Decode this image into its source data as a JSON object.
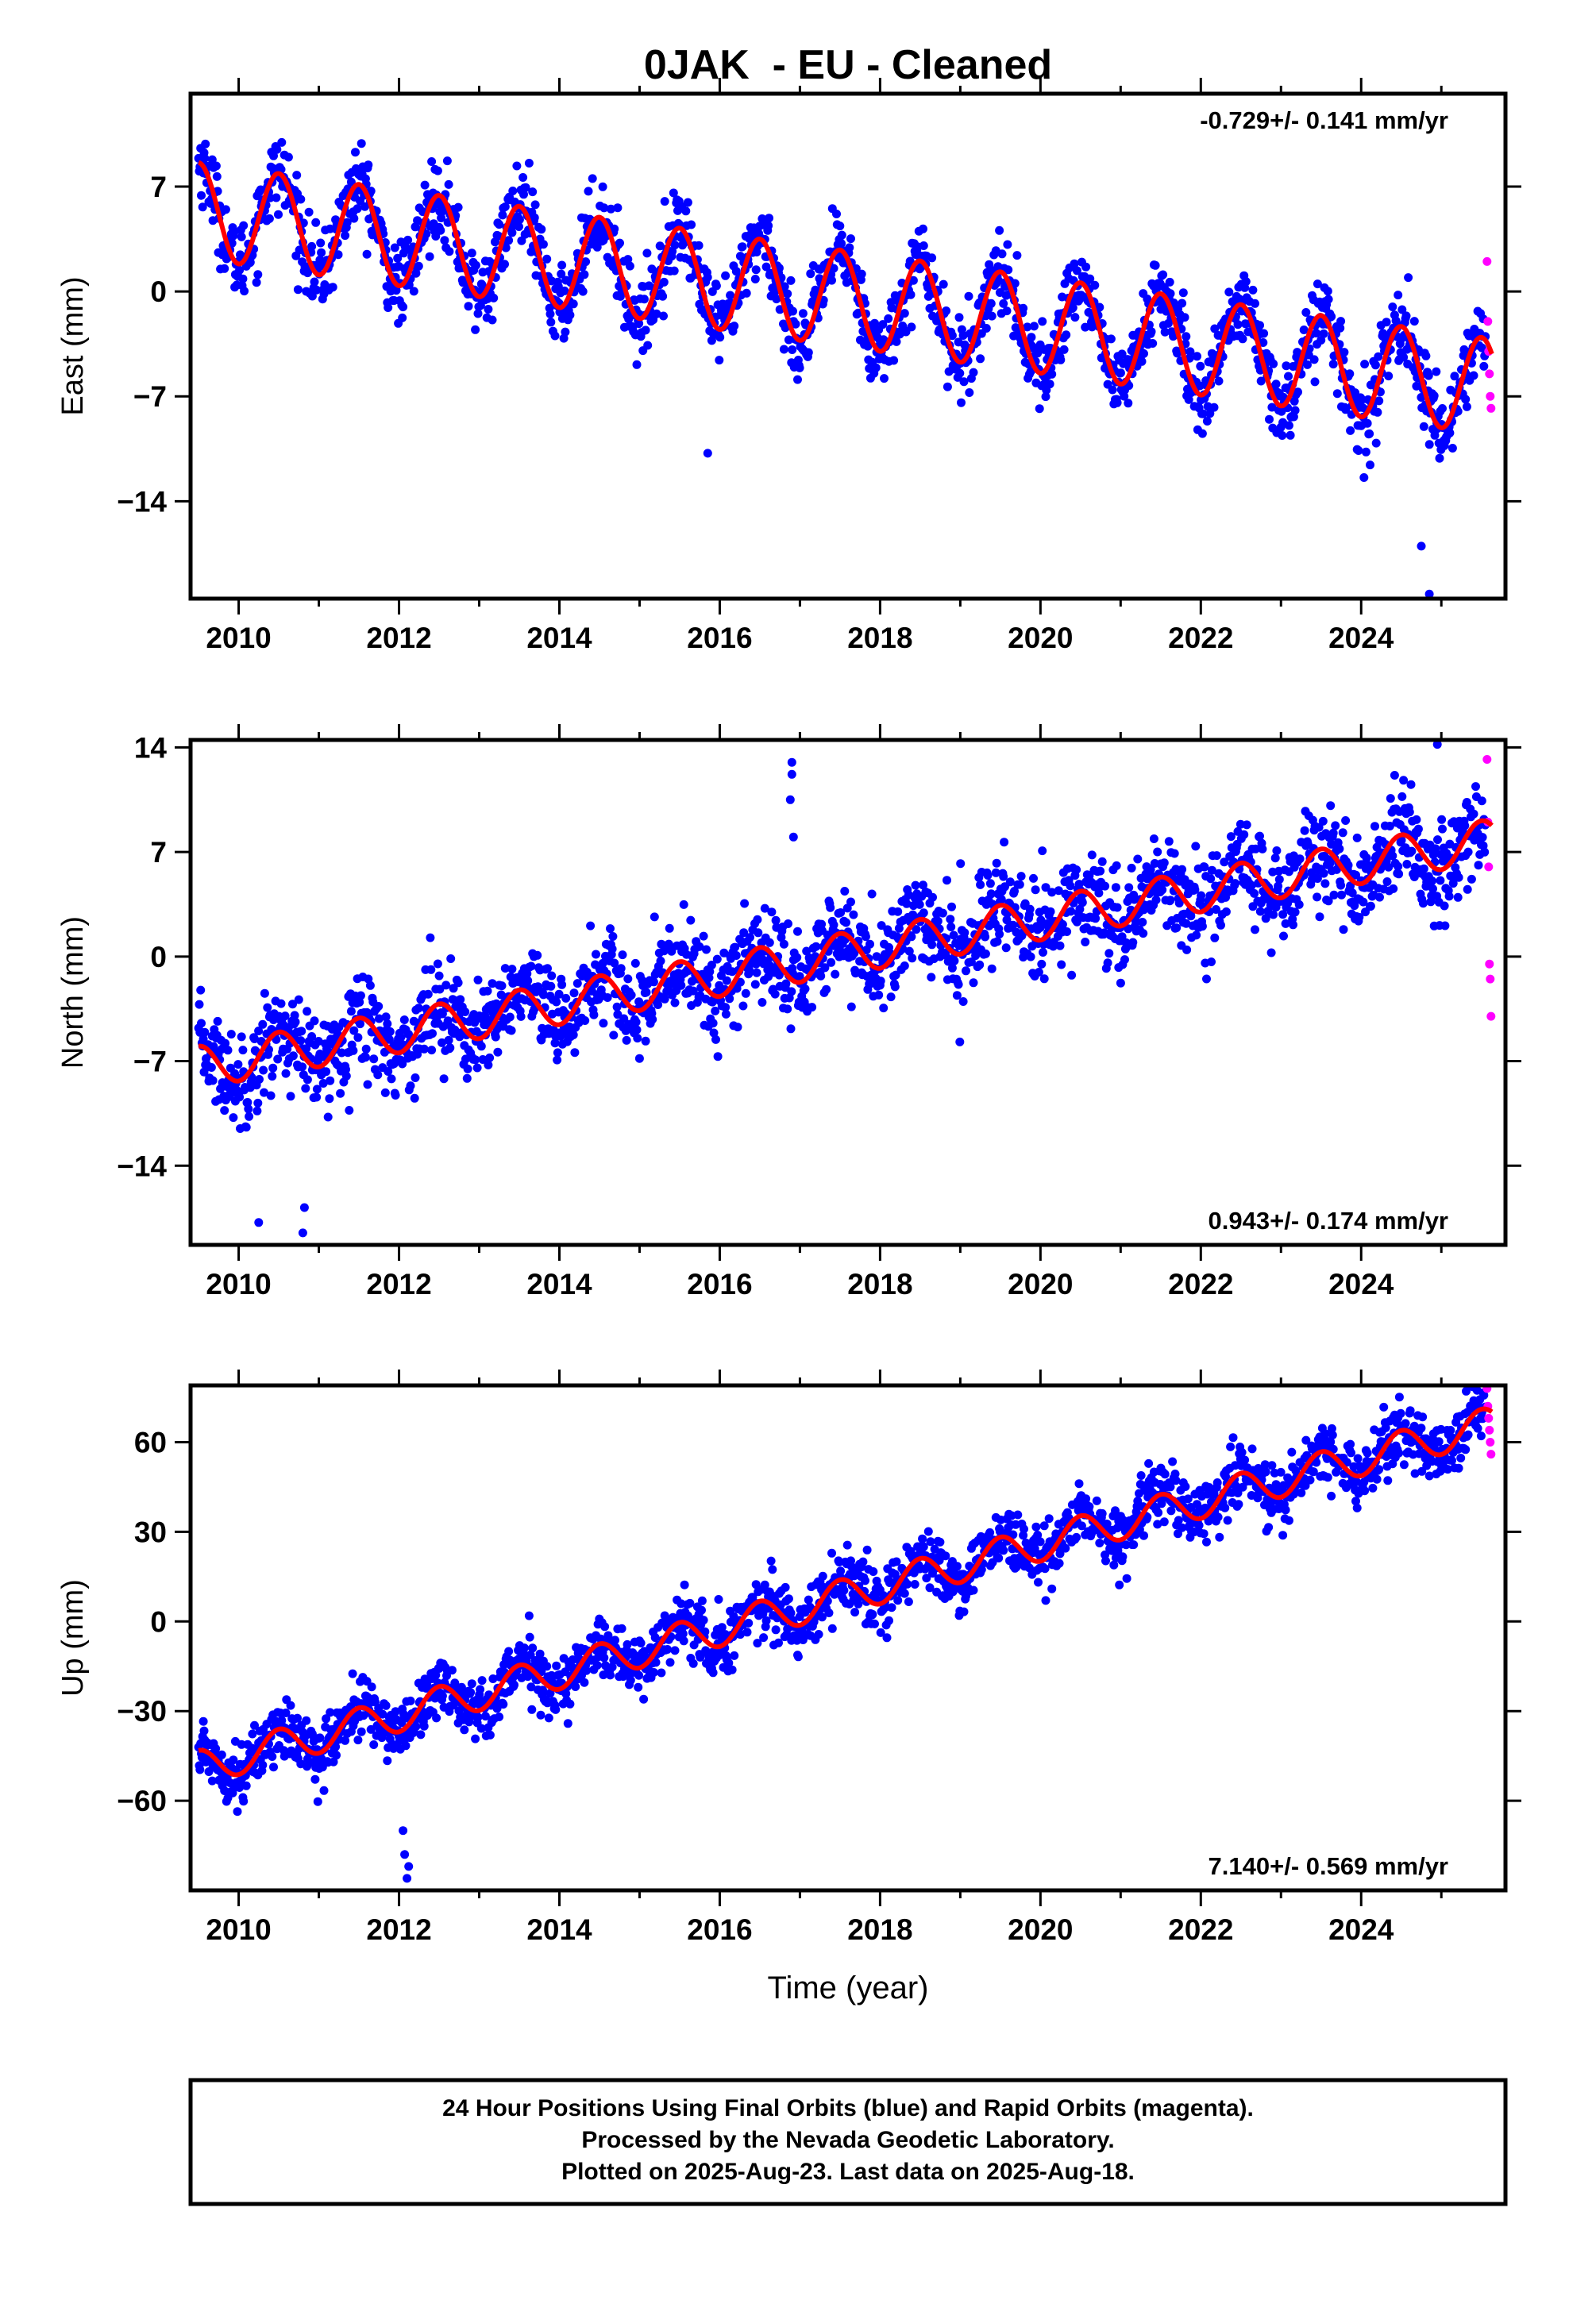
{
  "title": "0JAK  - EU - Cleaned",
  "x_axis_label": "Time (year)",
  "footer": [
    "24 Hour Positions Using Final Orbits (blue) and Rapid Orbits (magenta).",
    "Processed by the Nevada Geodetic Laboratory.",
    "Plotted on 2025-Aug-23. Last data on 2025-Aug-18."
  ],
  "colors": {
    "final": "#0000ff",
    "rapid": "#ff00ff",
    "model": "#ff0000",
    "frame": "#000000"
  },
  "chart_data": [
    {
      "type": "scatter",
      "component": "East",
      "ylabel": "East (mm)",
      "rate_label": "-0.729+/- 0.141 mm/yr",
      "rate_position": "top-right",
      "x_range": [
        2009.4,
        2025.8
      ],
      "ylim": [
        -20.5,
        13.2
      ],
      "y_ticks": [
        7,
        0,
        -7,
        -14
      ],
      "x_ticks": [
        2010,
        2012,
        2014,
        2016,
        2018,
        2020,
        2022,
        2024
      ],
      "model": {
        "start": 2009.5,
        "end": 2025.63,
        "offset_at_2009_5": 5.4,
        "rate_mm_per_yr": -0.729,
        "annual_amplitude": 3.2,
        "scatter_sd": 1.3
      },
      "series": [
        {
          "name": "Final Orbits (blue)",
          "color": "#0000ff",
          "x_range": [
            2009.5,
            2025.55
          ]
        },
        {
          "name": "Rapid Orbits (magenta)",
          "color": "#ff00ff",
          "x": [
            2025.57,
            2025.58,
            2025.59,
            2025.6,
            2025.61,
            2025.62
          ],
          "y": [
            2.0,
            -2.0,
            -4.0,
            -5.5,
            -7.0,
            -7.8
          ]
        }
      ],
      "outliers": [
        {
          "x": 2015.85,
          "y": -10.8
        },
        {
          "x": 2024.75,
          "y": -17.0
        },
        {
          "x": 2024.85,
          "y": -20.2
        }
      ]
    },
    {
      "type": "scatter",
      "component": "North",
      "ylabel": "North (mm)",
      "rate_label": "0.943+/- 0.174 mm/yr",
      "rate_position": "bottom-right",
      "x_range": [
        2009.4,
        2025.8
      ],
      "ylim": [
        -19.3,
        14.5
      ],
      "y_ticks": [
        14,
        7,
        0,
        -7,
        -14
      ],
      "x_ticks": [
        2010,
        2012,
        2014,
        2016,
        2018,
        2020,
        2022,
        2024
      ],
      "model": {
        "start": 2009.5,
        "end": 2025.63,
        "offset_at_2009_5": -7.4,
        "rate_mm_per_yr": 0.943,
        "annual_amplitude": 1.4,
        "scatter_sd": 1.6
      },
      "series": [
        {
          "name": "Final Orbits (blue)",
          "color": "#0000ff",
          "x_range": [
            2009.5,
            2025.55
          ]
        },
        {
          "name": "Rapid Orbits (magenta)",
          "color": "#ff00ff",
          "x": [
            2025.57,
            2025.58,
            2025.59,
            2025.6,
            2025.61,
            2025.62
          ],
          "y": [
            13.2,
            9.0,
            6.0,
            -0.5,
            -1.5,
            -4.0
          ]
        }
      ],
      "outliers": [
        {
          "x": 2016.9,
          "y": 13.0
        },
        {
          "x": 2016.9,
          "y": 12.2
        },
        {
          "x": 2016.88,
          "y": 10.5
        },
        {
          "x": 2016.92,
          "y": 8.0
        },
        {
          "x": 2010.25,
          "y": -17.8
        },
        {
          "x": 2010.8,
          "y": -18.5
        },
        {
          "x": 2010.82,
          "y": -16.8
        },
        {
          "x": 2024.95,
          "y": 14.2
        }
      ]
    },
    {
      "type": "scatter",
      "component": "Up",
      "ylabel": "Up (mm)",
      "rate_label": "7.140+/- 0.569 mm/yr",
      "rate_position": "bottom-right",
      "x_range": [
        2009.4,
        2025.8
      ],
      "ylim": [
        -90,
        79
      ],
      "y_ticks": [
        60,
        30,
        0,
        -30,
        -60
      ],
      "x_ticks": [
        2010,
        2012,
        2014,
        2016,
        2018,
        2020,
        2022,
        2024
      ],
      "model": {
        "start": 2009.5,
        "end": 2025.63,
        "offset_at_2009_5": -49.0,
        "rate_mm_per_yr": 7.14,
        "annual_amplitude": 5.8,
        "scatter_sd": 5.0
      },
      "series": [
        {
          "name": "Final Orbits (blue)",
          "color": "#0000ff",
          "x_range": [
            2009.5,
            2025.55
          ]
        },
        {
          "name": "Rapid Orbits (magenta)",
          "color": "#ff00ff",
          "x": [
            2025.57,
            2025.58,
            2025.59,
            2025.6,
            2025.61,
            2025.62
          ],
          "y": [
            78,
            72,
            68,
            64,
            60,
            56
          ]
        }
      ],
      "outliers": [
        {
          "x": 2012.05,
          "y": -70
        },
        {
          "x": 2012.07,
          "y": -78
        },
        {
          "x": 2012.1,
          "y": -86
        },
        {
          "x": 2012.12,
          "y": -82
        }
      ]
    }
  ]
}
